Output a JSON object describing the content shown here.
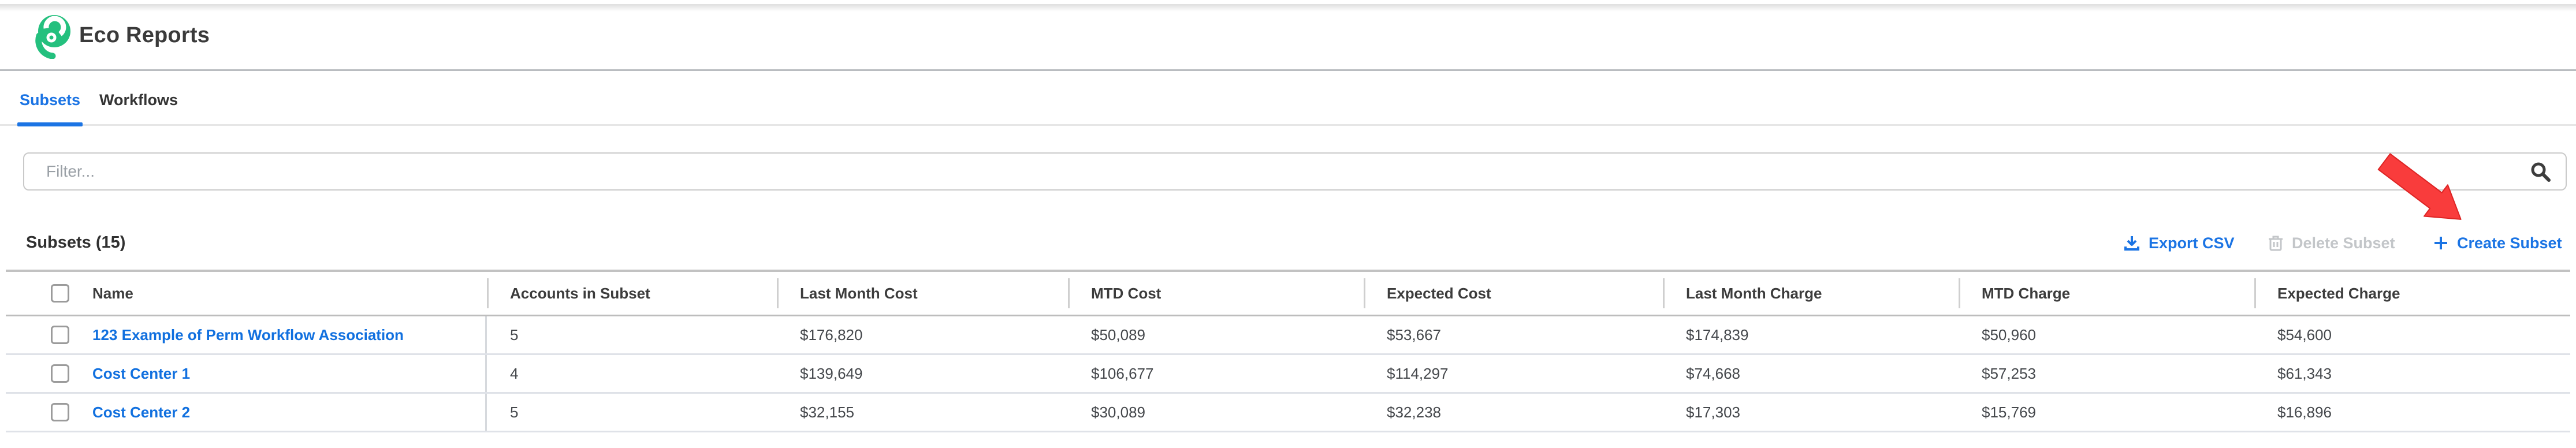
{
  "header": {
    "title": "Eco Reports"
  },
  "tabs": {
    "subsets": "Subsets",
    "workflows": "Workflows"
  },
  "filter": {
    "placeholder": "Filter...",
    "value": ""
  },
  "toolbar": {
    "heading": "Subsets (15)",
    "export_label": "Export CSV",
    "delete_label": "Delete Subset",
    "create_label": "Create Subset"
  },
  "annotation": {
    "description": "red arrow pointing at Create Subset button"
  },
  "colors": {
    "accent_blue": "#1b74e4",
    "link_blue": "#1170df",
    "logo_green": "#24c07e",
    "disabled_gray": "#c3c6c9",
    "arrow_red": "#f93c3c"
  },
  "table": {
    "columns": [
      "Name",
      "Accounts in Subset",
      "Last Month Cost",
      "MTD Cost",
      "Expected Cost",
      "Last Month Charge",
      "MTD Charge",
      "Expected Charge"
    ],
    "rows": [
      {
        "name": "123 Example of Perm Workflow Association",
        "values": [
          "5",
          "$176,820",
          "$50,089",
          "$53,667",
          "$174,839",
          "$50,960",
          "$54,600"
        ],
        "checked": false
      },
      {
        "name": "Cost Center 1",
        "values": [
          "4",
          "$139,649",
          "$106,677",
          "$114,297",
          "$74,668",
          "$57,253",
          "$61,343"
        ],
        "checked": false
      },
      {
        "name": "Cost Center 2",
        "values": [
          "5",
          "$32,155",
          "$30,089",
          "$32,238",
          "$17,303",
          "$15,769",
          "$16,896"
        ],
        "checked": false
      }
    ]
  }
}
